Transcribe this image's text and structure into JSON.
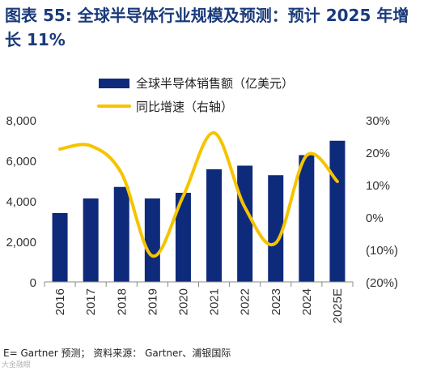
{
  "figure": {
    "label": "图表 55:",
    "title": "全球半导体行业规模及预测：预计 2025 年增长 11%",
    "source": "E= Gartner 预测； 资料来源： Gartner、浦银国际",
    "watermark": "大金融眼"
  },
  "chart_data": {
    "type": "bar",
    "categories": [
      "2016",
      "2017",
      "2018",
      "2019",
      "2020",
      "2021",
      "2022",
      "2023",
      "2024",
      "2025E"
    ],
    "series": [
      {
        "name": "全球半导体销售额（亿美元）",
        "type": "bar",
        "axis": "left",
        "color": "#0e2a7a",
        "values": [
          3400,
          4120,
          4690,
          4120,
          4400,
          5560,
          5740,
          5270,
          6260,
          6970
        ]
      },
      {
        "name": "同比增速（右轴）",
        "type": "line",
        "axis": "right",
        "color": "#f5c400",
        "values": [
          21,
          22,
          13.5,
          -12,
          6.5,
          26,
          3,
          -8,
          19,
          11
        ]
      }
    ],
    "y_left": {
      "min": 0,
      "max": 8000,
      "ticks": [
        "0",
        "2,000",
        "4,000",
        "6,000",
        "8,000"
      ],
      "tick_values": [
        0,
        2000,
        4000,
        6000,
        8000
      ]
    },
    "y_right": {
      "min": -20,
      "max": 30,
      "ticks": [
        "(20%)",
        "(10%)",
        "0%",
        "10%",
        "20%",
        "30%"
      ],
      "tick_values": [
        -20,
        -10,
        0,
        10,
        20,
        30
      ]
    },
    "legend_position": "top-left",
    "grid": false
  }
}
